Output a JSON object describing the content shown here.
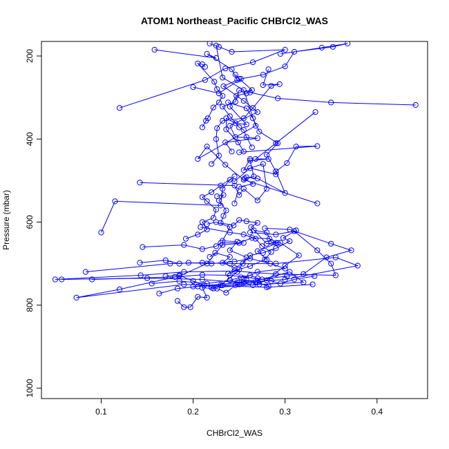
{
  "chart_data": {
    "type": "scatter",
    "title": "ATOM1 Northeast_Pacific CHBrCl2_WAS",
    "xlabel": "CHBrCl2_WAS",
    "ylabel": "Pressure (mbar)",
    "xlim": [
      0.035,
      0.455
    ],
    "ylim": [
      1025,
      165
    ],
    "y_reversed": true,
    "x_ticks": [
      0.1,
      0.2,
      0.3,
      0.4
    ],
    "x_tick_labels": [
      "0.1",
      "0.2",
      "0.3",
      "0.4"
    ],
    "y_ticks": [
      200,
      400,
      600,
      800,
      1000
    ],
    "y_tick_labels": [
      "200",
      "400",
      "600",
      "800",
      "1000"
    ],
    "grid": false,
    "legend": "none",
    "color": "#0000ff",
    "markers": "open-circle",
    "series": [
      {
        "points": [
          [
            0.335,
            555
          ],
          [
            0.255,
            498
          ],
          [
            0.235,
            462
          ],
          [
            0.215,
            418
          ],
          [
            0.205,
            448
          ],
          [
            0.268,
            368
          ],
          [
            0.255,
            282
          ],
          [
            0.232,
            252
          ],
          [
            0.225,
            175
          ]
        ]
      },
      {
        "points": [
          [
            0.255,
            650
          ],
          [
            0.232,
            655
          ],
          [
            0.215,
            700
          ],
          [
            0.185,
            730
          ],
          [
            0.12,
            762
          ],
          [
            0.073,
            782
          ],
          [
            0.19,
            750
          ],
          [
            0.28,
            757
          ],
          [
            0.33,
            750
          ]
        ]
      },
      {
        "points": [
          [
            0.158,
            185
          ],
          [
            0.225,
            205
          ],
          [
            0.215,
            195
          ],
          [
            0.242,
            232
          ],
          [
            0.248,
            258
          ],
          [
            0.233,
            273
          ],
          [
            0.255,
            308
          ],
          [
            0.27,
            335
          ],
          [
            0.24,
            368
          ],
          [
            0.246,
            395
          ],
          [
            0.27,
            398
          ],
          [
            0.235,
            408
          ],
          [
            0.242,
            430
          ]
        ]
      },
      {
        "points": [
          [
            0.12,
            325
          ],
          [
            0.213,
            258
          ],
          [
            0.235,
            230
          ],
          [
            0.265,
            215
          ],
          [
            0.3,
            185
          ],
          [
            0.242,
            190
          ],
          [
            0.228,
            178
          ],
          [
            0.218,
            170
          ]
        ]
      },
      {
        "points": [
          [
            0.1,
            625
          ],
          [
            0.115,
            550
          ],
          [
            0.23,
            560
          ],
          [
            0.232,
            520
          ],
          [
            0.24,
            498
          ],
          [
            0.245,
            502
          ],
          [
            0.262,
            470
          ],
          [
            0.29,
            485
          ],
          [
            0.29,
            478
          ],
          [
            0.302,
            458
          ],
          [
            0.312,
            418
          ],
          [
            0.335,
            417
          ],
          [
            0.25,
            432
          ]
        ]
      },
      {
        "points": [
          [
            0.142,
            505
          ],
          [
            0.245,
            512
          ],
          [
            0.25,
            535
          ],
          [
            0.255,
            520
          ],
          [
            0.27,
            548
          ],
          [
            0.28,
            520
          ],
          [
            0.276,
            460
          ],
          [
            0.255,
            475
          ],
          [
            0.262,
            448
          ]
        ]
      },
      {
        "points": [
          [
            0.05,
            738
          ],
          [
            0.143,
            728
          ],
          [
            0.19,
            720
          ],
          [
            0.245,
            718
          ],
          [
            0.29,
            725
          ],
          [
            0.355,
            728
          ],
          [
            0.35,
            700
          ],
          [
            0.335,
            668
          ],
          [
            0.31,
            622
          ],
          [
            0.29,
            630
          ],
          [
            0.262,
            625
          ]
        ]
      },
      {
        "points": [
          [
            0.057,
            738
          ],
          [
            0.15,
            735
          ],
          [
            0.21,
            738
          ],
          [
            0.248,
            745
          ],
          [
            0.302,
            730
          ],
          [
            0.32,
            725
          ],
          [
            0.345,
            685
          ],
          [
            0.372,
            668
          ],
          [
            0.35,
            652
          ],
          [
            0.305,
            618
          ],
          [
            0.278,
            615
          ]
        ]
      },
      {
        "points": [
          [
            0.083,
            720
          ],
          [
            0.175,
            700
          ],
          [
            0.21,
            698
          ],
          [
            0.24,
            700
          ],
          [
            0.29,
            700
          ],
          [
            0.355,
            685
          ],
          [
            0.379,
            705
          ],
          [
            0.3,
            738
          ],
          [
            0.255,
            745
          ],
          [
            0.2,
            755
          ]
        ]
      },
      {
        "points": [
          [
            0.09,
            738
          ],
          [
            0.18,
            732
          ],
          [
            0.21,
            727
          ],
          [
            0.24,
            728
          ],
          [
            0.275,
            738
          ],
          [
            0.305,
            720
          ],
          [
            0.32,
            745
          ],
          [
            0.272,
            750
          ],
          [
            0.22,
            758
          ]
        ]
      },
      {
        "points": [
          [
            0.183,
            790
          ],
          [
            0.19,
            805
          ],
          [
            0.197,
            805
          ],
          [
            0.205,
            780
          ],
          [
            0.215,
            782
          ],
          [
            0.21,
            758
          ],
          [
            0.222,
            760
          ],
          [
            0.232,
            752
          ],
          [
            0.25,
            750
          ],
          [
            0.268,
            745
          ]
        ]
      },
      {
        "points": [
          [
            0.163,
            772
          ],
          [
            0.183,
            760
          ],
          [
            0.205,
            755
          ],
          [
            0.23,
            752
          ],
          [
            0.248,
            720
          ],
          [
            0.258,
            685
          ],
          [
            0.24,
            668
          ],
          [
            0.248,
            647
          ],
          [
            0.232,
            645
          ],
          [
            0.24,
            612
          ],
          [
            0.225,
            600
          ],
          [
            0.215,
            605
          ]
        ]
      },
      {
        "points": [
          [
            0.2,
            275
          ],
          [
            0.228,
            290
          ],
          [
            0.252,
            255
          ],
          [
            0.276,
            245
          ],
          [
            0.3,
            225
          ],
          [
            0.31,
            190
          ],
          [
            0.352,
            178
          ],
          [
            0.368,
            170
          ],
          [
            0.34,
            180
          ],
          [
            0.295,
            195
          ]
        ]
      },
      {
        "points": [
          [
            0.442,
            318
          ],
          [
            0.35,
            312
          ],
          [
            0.292,
            302
          ],
          [
            0.262,
            288
          ],
          [
            0.25,
            283
          ],
          [
            0.246,
            310
          ],
          [
            0.232,
            322
          ],
          [
            0.24,
            345
          ],
          [
            0.25,
            372
          ],
          [
            0.255,
            378
          ],
          [
            0.258,
            395
          ],
          [
            0.264,
            420
          ]
        ]
      },
      {
        "points": [
          [
            0.282,
            232
          ],
          [
            0.276,
            270
          ],
          [
            0.294,
            268
          ],
          [
            0.285,
            272
          ],
          [
            0.265,
            325
          ],
          [
            0.255,
            350
          ],
          [
            0.232,
            356
          ],
          [
            0.226,
            374
          ],
          [
            0.225,
            400
          ],
          [
            0.228,
            440
          ],
          [
            0.22,
            460
          ]
        ]
      },
      {
        "points": [
          [
            0.238,
            312
          ],
          [
            0.258,
            326
          ],
          [
            0.265,
            350
          ],
          [
            0.272,
            382
          ],
          [
            0.292,
            410
          ],
          [
            0.28,
            438
          ],
          [
            0.29,
            478
          ],
          [
            0.3,
            530
          ],
          [
            0.27,
            495
          ],
          [
            0.258,
            492
          ]
        ]
      },
      {
        "points": [
          [
            0.333,
            335
          ],
          [
            0.29,
            410
          ],
          [
            0.268,
            448
          ],
          [
            0.282,
            448
          ],
          [
            0.262,
            452
          ],
          [
            0.266,
            490
          ],
          [
            0.256,
            495
          ],
          [
            0.265,
            508
          ],
          [
            0.25,
            515
          ],
          [
            0.245,
            555
          ]
        ]
      },
      {
        "points": [
          [
            0.213,
            226
          ],
          [
            0.21,
            220
          ],
          [
            0.205,
            218
          ],
          [
            0.223,
            262
          ],
          [
            0.226,
            280
          ],
          [
            0.232,
            296
          ],
          [
            0.228,
            312
          ],
          [
            0.222,
            324
          ],
          [
            0.216,
            350
          ],
          [
            0.214,
            356
          ],
          [
            0.21,
            372
          ]
        ]
      },
      {
        "points": [
          [
            0.226,
            538
          ],
          [
            0.233,
            535
          ],
          [
            0.228,
            548
          ],
          [
            0.236,
            572
          ],
          [
            0.233,
            585
          ],
          [
            0.23,
            602
          ],
          [
            0.244,
            608
          ],
          [
            0.25,
            595
          ],
          [
            0.258,
            598
          ],
          [
            0.27,
            602
          ],
          [
            0.263,
            612
          ],
          [
            0.28,
            652
          ],
          [
            0.29,
            650
          ]
        ]
      },
      {
        "points": [
          [
            0.312,
            620
          ],
          [
            0.298,
            638
          ],
          [
            0.305,
            646
          ],
          [
            0.29,
            663
          ],
          [
            0.276,
            674
          ],
          [
            0.262,
            680
          ],
          [
            0.254,
            700
          ],
          [
            0.245,
            710
          ],
          [
            0.232,
            698
          ],
          [
            0.24,
            684
          ],
          [
            0.224,
            674
          ],
          [
            0.218,
            684
          ]
        ]
      },
      {
        "points": [
          [
            0.255,
            430
          ],
          [
            0.249,
            408
          ],
          [
            0.236,
            377
          ],
          [
            0.236,
            350
          ],
          [
            0.246,
            362
          ],
          [
            0.258,
            365
          ],
          [
            0.24,
            322
          ],
          [
            0.247,
            296
          ],
          [
            0.258,
            290
          ],
          [
            0.264,
            282
          ],
          [
            0.25,
            255
          ],
          [
            0.246,
            245
          ]
        ]
      },
      {
        "points": [
          [
            0.266,
            620
          ],
          [
            0.28,
            625
          ],
          [
            0.285,
            648
          ],
          [
            0.295,
            650
          ],
          [
            0.315,
            680
          ],
          [
            0.3,
            705
          ],
          [
            0.28,
            740
          ],
          [
            0.265,
            752
          ],
          [
            0.25,
            745
          ],
          [
            0.24,
            740
          ]
        ]
      },
      {
        "points": [
          [
            0.145,
            660
          ],
          [
            0.19,
            655
          ],
          [
            0.21,
            665
          ],
          [
            0.225,
            658
          ],
          [
            0.23,
            650
          ],
          [
            0.25,
            650
          ],
          [
            0.264,
            638
          ],
          [
            0.283,
            640
          ],
          [
            0.292,
            650
          ],
          [
            0.27,
            670
          ],
          [
            0.28,
            690
          ]
        ]
      },
      {
        "points": [
          [
            0.142,
            698
          ],
          [
            0.17,
            692
          ],
          [
            0.185,
            700
          ],
          [
            0.195,
            698
          ],
          [
            0.22,
            700
          ],
          [
            0.245,
            695
          ],
          [
            0.262,
            688
          ],
          [
            0.284,
            700
          ],
          [
            0.3,
            712
          ],
          [
            0.27,
            720
          ],
          [
            0.255,
            735
          ]
        ]
      },
      {
        "points": [
          [
            0.192,
            640
          ],
          [
            0.205,
            630
          ],
          [
            0.215,
            618
          ],
          [
            0.21,
            600
          ],
          [
            0.222,
            590
          ],
          [
            0.225,
            570
          ],
          [
            0.215,
            550
          ],
          [
            0.21,
            540
          ],
          [
            0.22,
            528
          ],
          [
            0.23,
            512
          ],
          [
            0.245,
            490
          ]
        ]
      },
      {
        "points": [
          [
            0.155,
            748
          ],
          [
            0.185,
            742
          ],
          [
            0.215,
            748
          ],
          [
            0.24,
            740
          ],
          [
            0.252,
            733
          ],
          [
            0.262,
            728
          ],
          [
            0.27,
            735
          ],
          [
            0.285,
            742
          ],
          [
            0.295,
            748
          ],
          [
            0.31,
            738
          ],
          [
            0.332,
            730
          ]
        ]
      },
      {
        "points": [
          [
            0.208,
            612
          ],
          [
            0.24,
            625
          ],
          [
            0.255,
            630
          ],
          [
            0.268,
            640
          ],
          [
            0.275,
            658
          ],
          [
            0.285,
            672
          ],
          [
            0.278,
            690
          ],
          [
            0.262,
            706
          ],
          [
            0.25,
            714
          ],
          [
            0.238,
            724
          ]
        ]
      },
      {
        "points": [
          [
            0.17,
            730
          ],
          [
            0.185,
            728
          ],
          [
            0.2,
            742
          ],
          [
            0.212,
            752
          ],
          [
            0.226,
            760
          ],
          [
            0.236,
            770
          ],
          [
            0.246,
            752
          ],
          [
            0.258,
            740
          ],
          [
            0.27,
            745
          ],
          [
            0.282,
            755
          ]
        ]
      }
    ]
  }
}
